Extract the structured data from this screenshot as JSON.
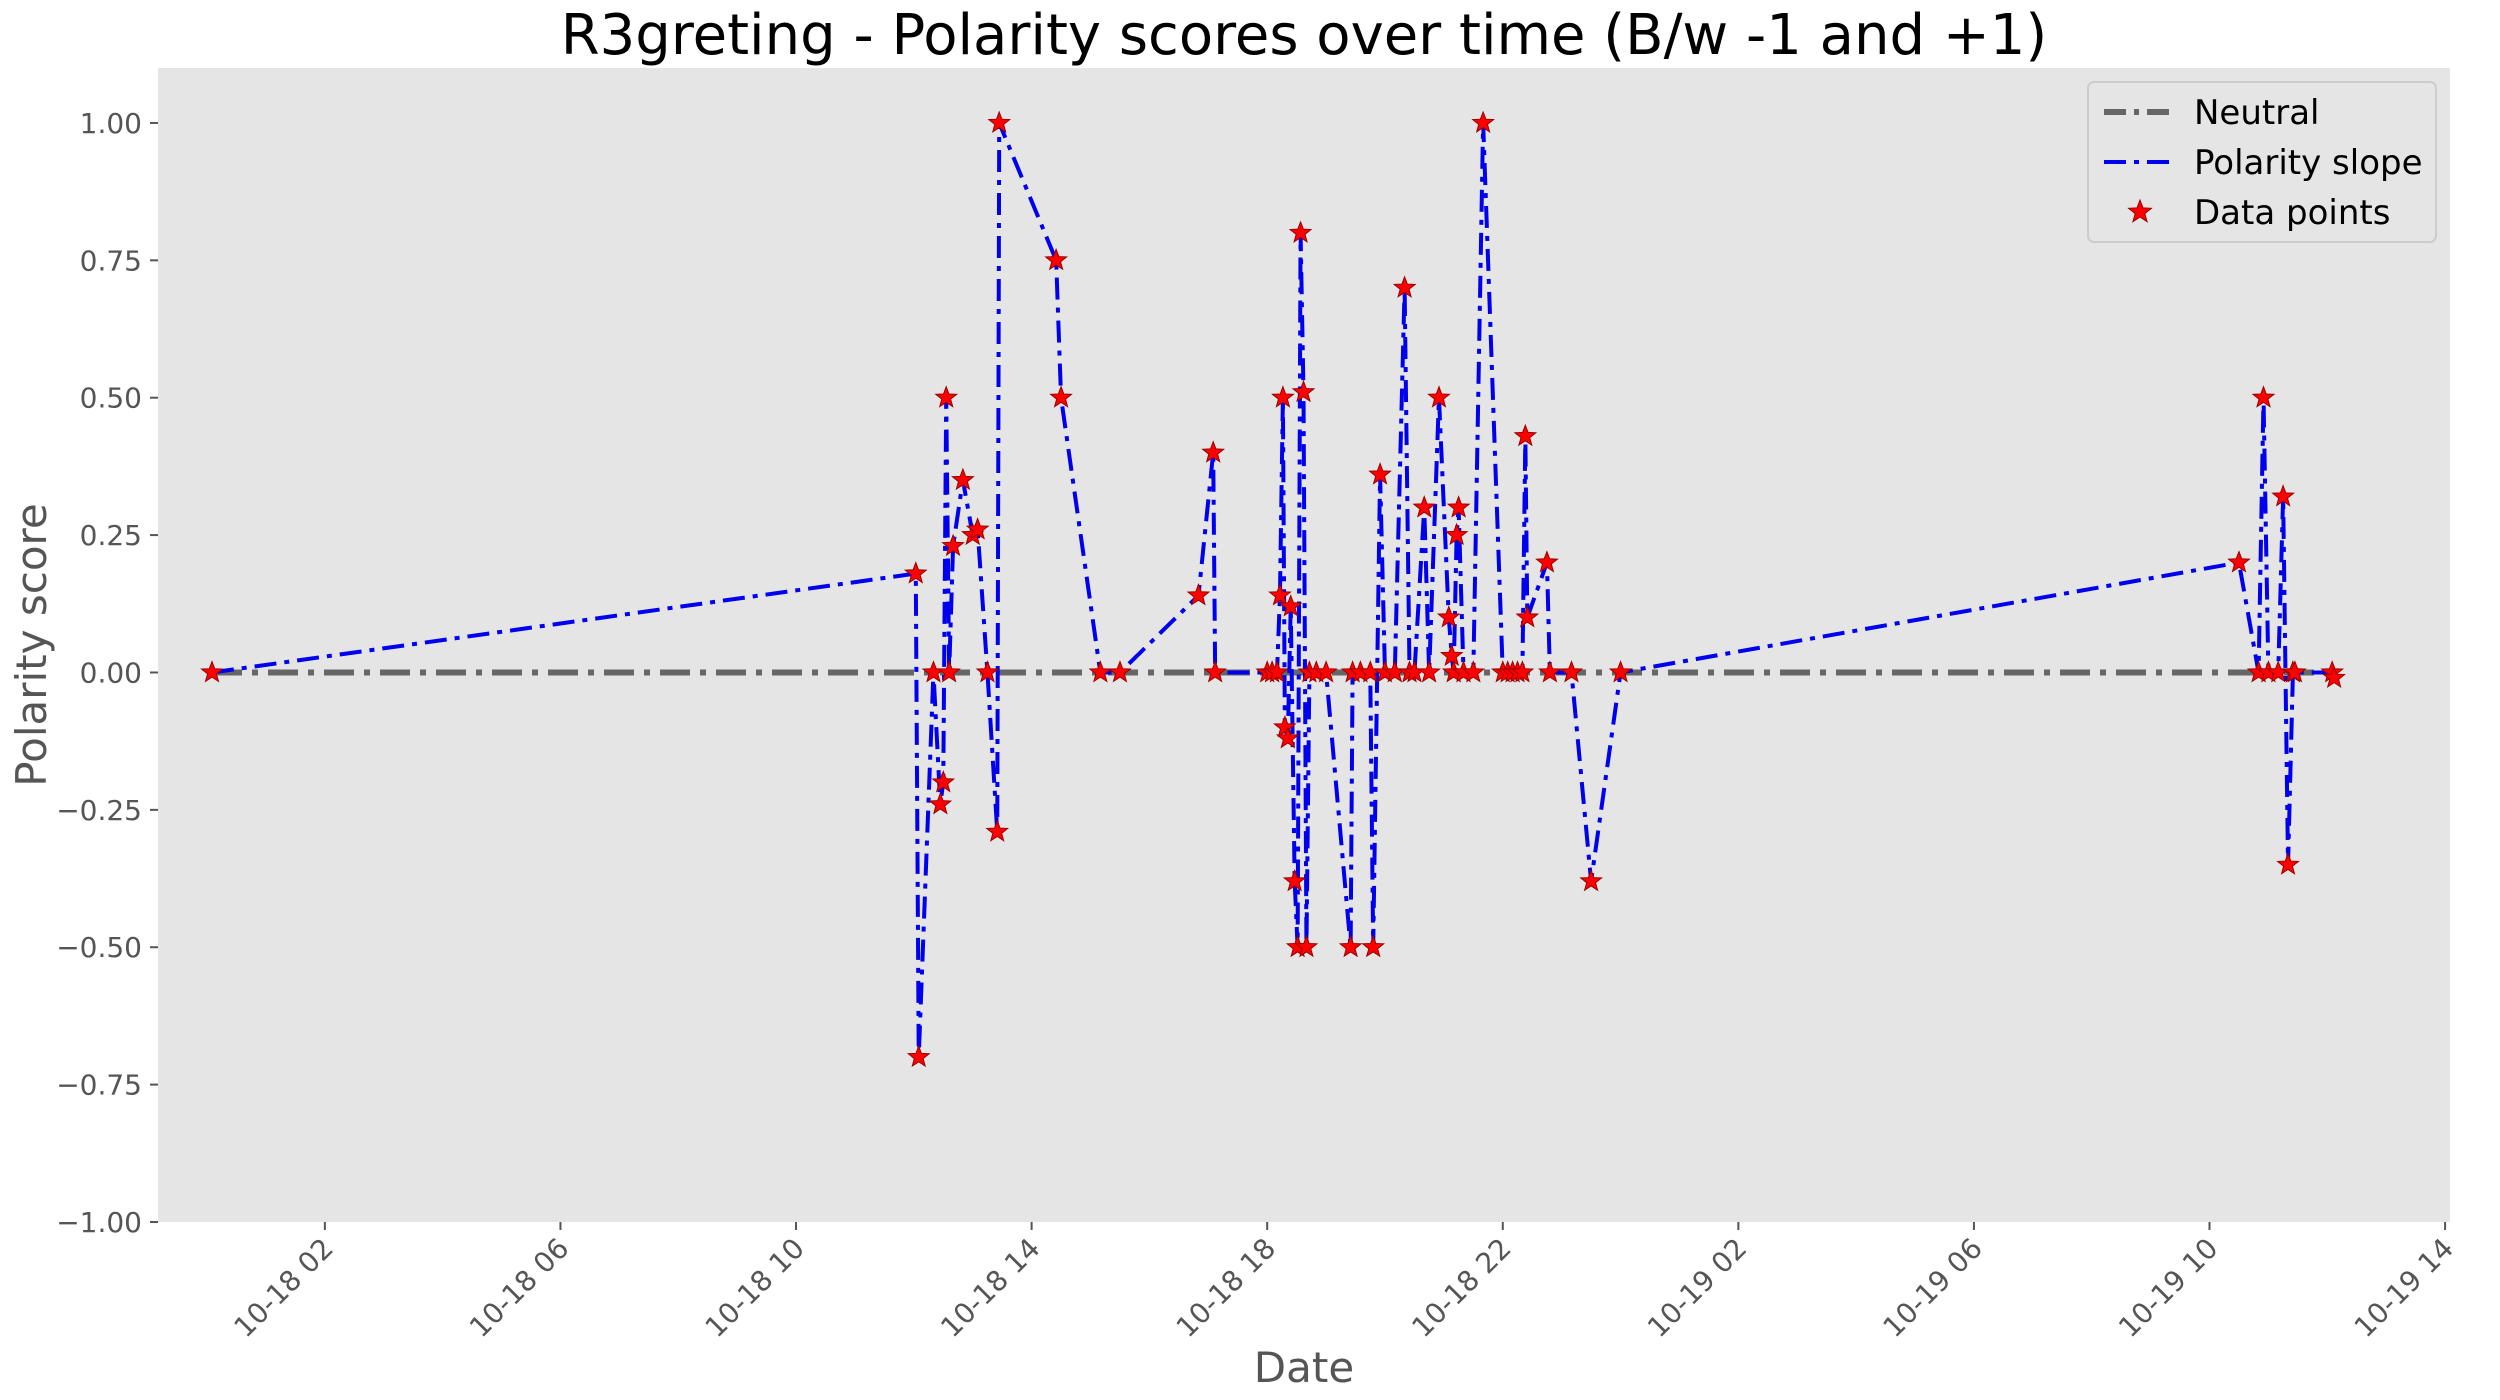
{
  "chart_data": {
    "type": "line",
    "title": "R3greting - Polarity scores over time (B/w -1 and +1)",
    "xlabel": "Date",
    "ylabel": "Polarity score",
    "ylim": [
      -1.0,
      1.1
    ],
    "xlim": [
      "2019-10-17 23:10",
      "2019-10-19 14:05"
    ],
    "y_ticks": [
      {
        "value": -1.0,
        "label": "−1.00"
      },
      {
        "value": -0.75,
        "label": "−0.75"
      },
      {
        "value": -0.5,
        "label": "−0.50"
      },
      {
        "value": -0.25,
        "label": "−0.25"
      },
      {
        "value": 0.0,
        "label": "0.00"
      },
      {
        "value": 0.25,
        "label": "0.25"
      },
      {
        "value": 0.5,
        "label": "0.50"
      },
      {
        "value": 0.75,
        "label": "0.75"
      },
      {
        "value": 1.0,
        "label": "1.00"
      }
    ],
    "x_ticks": [
      {
        "value": "2019-10-18 02:00",
        "label": "10-18 02"
      },
      {
        "value": "2019-10-18 06:00",
        "label": "10-18 06"
      },
      {
        "value": "2019-10-18 10:00",
        "label": "10-18 10"
      },
      {
        "value": "2019-10-18 14:00",
        "label": "10-18 14"
      },
      {
        "value": "2019-10-18 18:00",
        "label": "10-18 18"
      },
      {
        "value": "2019-10-18 22:00",
        "label": "10-18 22"
      },
      {
        "value": "2019-10-19 02:00",
        "label": "10-19 02"
      },
      {
        "value": "2019-10-19 06:00",
        "label": "10-19 06"
      },
      {
        "value": "2019-10-19 10:00",
        "label": "10-19 10"
      },
      {
        "value": "2019-10-19 14:00",
        "label": "10-19 14"
      }
    ],
    "grid": false,
    "legend": {
      "placement": "top-right",
      "entries": [
        {
          "label": "Neutral",
          "style": "dash-dot line",
          "color": "#666666"
        },
        {
          "label": "Polarity slope",
          "style": "dash-dot line",
          "color": "#0000ee"
        },
        {
          "label": "Data points",
          "style": "star marker",
          "color": "#ff0000"
        }
      ]
    },
    "series": [
      {
        "name": "Neutral",
        "color": "#666666",
        "x": [
          "2019-10-18 00:05",
          "2019-10-19 12:10"
        ],
        "y": [
          0.0,
          0.0
        ]
      },
      {
        "name": "Polarity slope",
        "color": "#0000ee",
        "marker_name": "Data points",
        "marker_color": "#ff0000",
        "x": [
          "2019-10-18 00:05",
          "2019-10-18 12:02",
          "2019-10-18 12:05",
          "2019-10-18 12:20",
          "2019-10-18 12:27",
          "2019-10-18 12:30",
          "2019-10-18 12:33",
          "2019-10-18 12:36",
          "2019-10-18 12:40",
          "2019-10-18 12:50",
          "2019-10-18 13:00",
          "2019-10-18 13:05",
          "2019-10-18 13:15",
          "2019-10-18 13:25",
          "2019-10-18 13:27",
          "2019-10-18 14:25",
          "2019-10-18 14:30",
          "2019-10-18 15:10",
          "2019-10-18 15:30",
          "2019-10-18 16:50",
          "2019-10-18 17:05",
          "2019-10-18 17:07",
          "2019-10-18 18:00",
          "2019-10-18 18:05",
          "2019-10-18 18:10",
          "2019-10-18 18:13",
          "2019-10-18 18:16",
          "2019-10-18 18:18",
          "2019-10-18 18:21",
          "2019-10-18 18:24",
          "2019-10-18 18:28",
          "2019-10-18 18:31",
          "2019-10-18 18:34",
          "2019-10-18 18:37",
          "2019-10-18 18:40",
          "2019-10-18 18:43",
          "2019-10-18 18:50",
          "2019-10-18 19:00",
          "2019-10-18 19:25",
          "2019-10-18 19:27",
          "2019-10-18 19:35",
          "2019-10-18 19:45",
          "2019-10-18 19:48",
          "2019-10-18 19:55",
          "2019-10-18 20:00",
          "2019-10-18 20:10",
          "2019-10-18 20:20",
          "2019-10-18 20:25",
          "2019-10-18 20:30",
          "2019-10-18 20:40",
          "2019-10-18 20:45",
          "2019-10-18 20:55",
          "2019-10-18 21:05",
          "2019-10-18 21:08",
          "2019-10-18 21:10",
          "2019-10-18 21:13",
          "2019-10-18 21:15",
          "2019-10-18 21:20",
          "2019-10-18 21:30",
          "2019-10-18 21:40",
          "2019-10-18 22:00",
          "2019-10-18 22:05",
          "2019-10-18 22:10",
          "2019-10-18 22:15",
          "2019-10-18 22:20",
          "2019-10-18 22:23",
          "2019-10-18 22:25",
          "2019-10-18 22:45",
          "2019-10-18 22:48",
          "2019-10-18 23:10",
          "2019-10-18 23:30",
          "2019-10-19 00:00",
          "2019-10-19 10:30",
          "2019-10-19 10:50",
          "2019-10-19 10:55",
          "2019-10-19 11:00",
          "2019-10-19 11:10",
          "2019-10-19 11:15",
          "2019-10-19 11:20",
          "2019-10-19 11:25",
          "2019-10-19 11:27",
          "2019-10-19 12:05",
          "2019-10-19 12:07"
        ],
        "y": [
          0.0,
          0.18,
          -0.7,
          0.0,
          -0.24,
          -0.2,
          0.5,
          0.0,
          0.23,
          0.35,
          0.25,
          0.26,
          0.0,
          -0.29,
          1.0,
          0.75,
          0.5,
          0.0,
          0.0,
          0.14,
          0.4,
          0.0,
          0.0,
          0.0,
          0.0,
          0.14,
          0.5,
          -0.1,
          -0.12,
          0.12,
          -0.38,
          -0.5,
          0.8,
          0.51,
          -0.5,
          0.0,
          0.0,
          0.0,
          -0.5,
          0.0,
          0.0,
          0.0,
          -0.5,
          0.36,
          0.0,
          0.0,
          0.7,
          0.0,
          0.0,
          0.3,
          0.0,
          0.5,
          0.1,
          0.03,
          0.0,
          0.25,
          0.3,
          0.0,
          0.0,
          1.0,
          0.0,
          0.0,
          0.0,
          0.0,
          0.0,
          0.43,
          0.1,
          0.2,
          0.0,
          0.0,
          -0.38,
          0.0,
          0.2,
          0.0,
          0.5,
          0.0,
          0.0,
          0.32,
          -0.35,
          0.0,
          0.0,
          0.0,
          -0.01
        ]
      }
    ]
  }
}
